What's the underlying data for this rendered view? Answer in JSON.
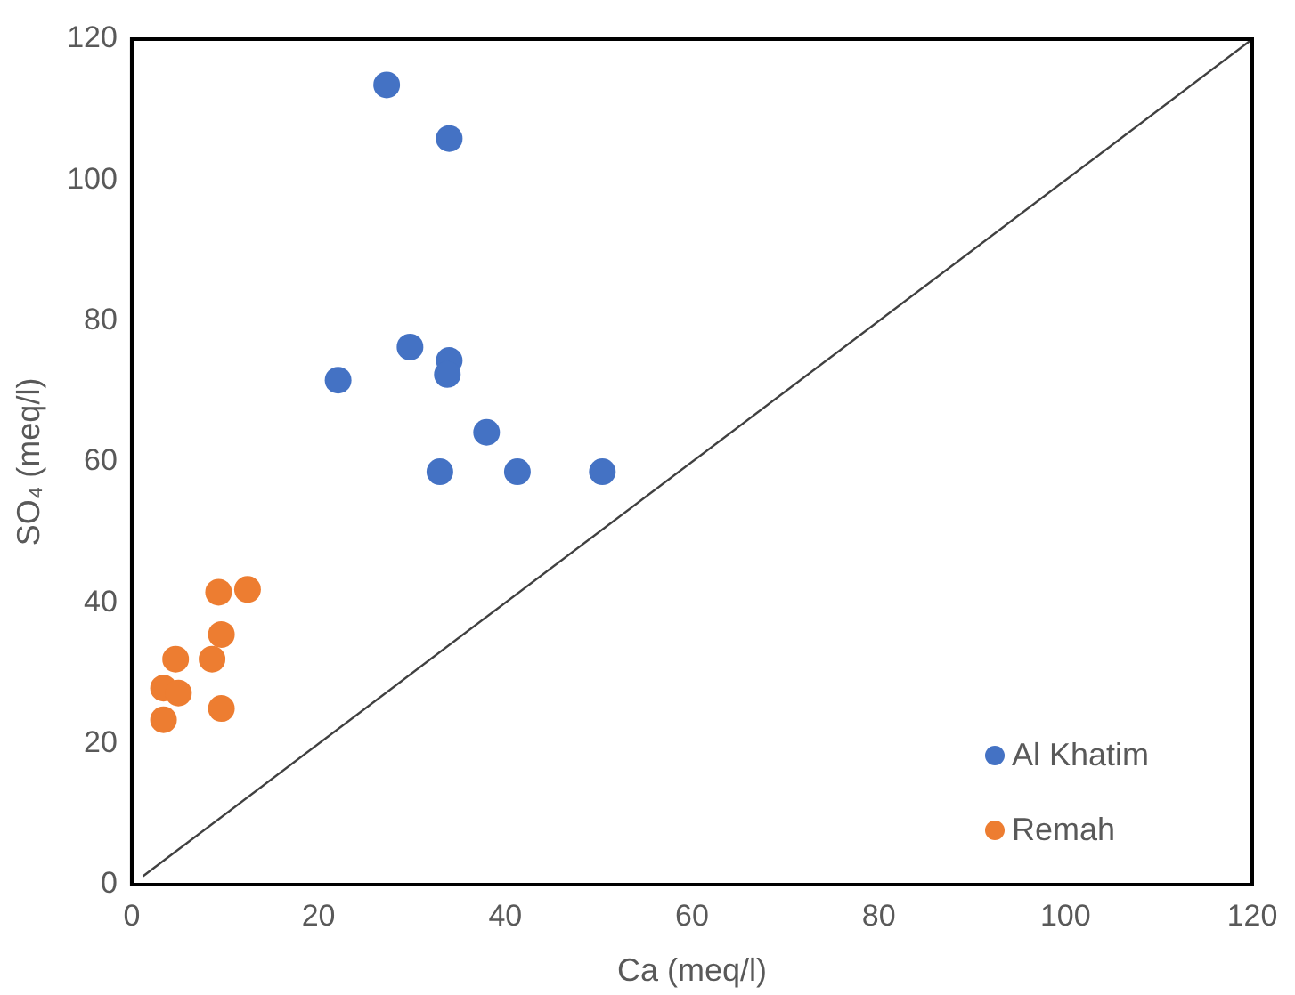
{
  "chart_data": {
    "type": "scatter",
    "xlabel": "Ca (meq/l)",
    "ylabel": "SO₄ (meq/l)",
    "xlim": [
      0,
      120
    ],
    "xticks": [
      0,
      20,
      40,
      60,
      80,
      100,
      120
    ],
    "ylim": [
      0,
      120
    ],
    "yticks": [
      0,
      20,
      40,
      60,
      80,
      100,
      120
    ],
    "grid": false,
    "legend": "bottom right",
    "marker": "circle",
    "series": [
      {
        "name": "Al Khatim",
        "color": "#4472c4",
        "x": [
          27.3,
          34.0,
          29.8,
          34.0,
          33.8,
          22.1,
          38.0,
          33.0,
          41.3,
          50.4
        ],
        "values": [
          113.5,
          105.9,
          76.3,
          74.4,
          72.4,
          71.6,
          64.2,
          58.6,
          58.6,
          58.6
        ]
      },
      {
        "name": "Remah",
        "color": "#ed7d31",
        "x": [
          9.3,
          12.4,
          9.6,
          4.7,
          8.6,
          3.4,
          5.0,
          9.6,
          3.4
        ],
        "values": [
          41.5,
          41.9,
          35.5,
          32.0,
          32.0,
          27.9,
          27.2,
          25.0,
          23.4
        ]
      },
      {
        "type": "line",
        "marker": "none",
        "color": "#404040",
        "x": [
          1.2,
          120
        ],
        "values": [
          1.2,
          120
        ]
      }
    ]
  }
}
